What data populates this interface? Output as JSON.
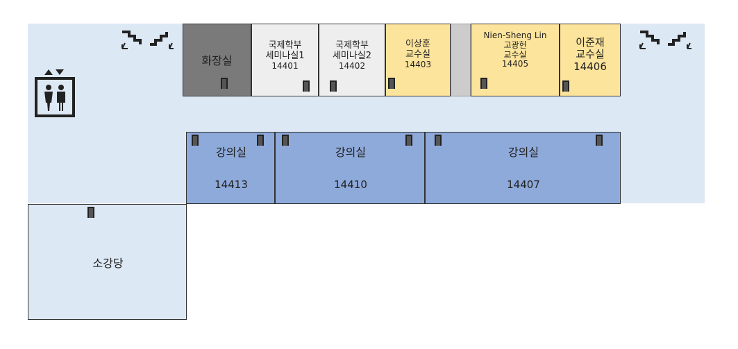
{
  "rooms_top": [
    {
      "id": "restroom",
      "label": "화장실"
    },
    {
      "id": "seminar1",
      "label1": "국제학부",
      "label2": "세미나실1",
      "number": "14401"
    },
    {
      "id": "seminar2",
      "label1": "국제학부",
      "label2": "세미나실2",
      "number": "14402"
    },
    {
      "id": "prof-lee-sanghoon",
      "label1": "이상훈",
      "label2": "교수실",
      "number": "14403"
    },
    {
      "id": "prof-lin-ko",
      "label1": "Nien-Sheng Lin",
      "label2": "고광헌",
      "label3": "교수실",
      "number": "14405"
    },
    {
      "id": "prof-lee-junjae",
      "label1": "이준재",
      "label2": "교수실",
      "number": "14406"
    }
  ],
  "lecture_rooms": [
    {
      "label": "강의실",
      "number": "14413"
    },
    {
      "label": "강의실",
      "number": "14410"
    },
    {
      "label": "강의실",
      "number": "14407"
    }
  ],
  "auditorium": {
    "label": "소강당"
  },
  "icons": [
    "stairs-icon",
    "elevator-icon",
    "door-icon"
  ],
  "colors": {
    "corridor": "#dde8f5",
    "office": "#fde49c",
    "lecture": "#8eaadb",
    "restroom": "#7a7a7a",
    "seminar": "#eeeeee"
  }
}
